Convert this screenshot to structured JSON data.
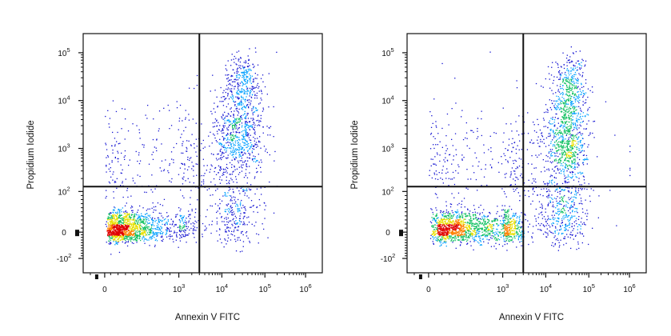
{
  "chart_data": [
    {
      "type": "scatter",
      "title": "",
      "xlabel": "Annexin V FITC",
      "ylabel": "Propidium Iodide",
      "x_scale": "biexponential",
      "y_scale": "biexponential",
      "x_tick_labels": [
        {
          "value": 0,
          "base": "0",
          "exp": ""
        },
        {
          "value": 1000,
          "base": "10",
          "exp": "3"
        },
        {
          "value": 10000,
          "base": "10",
          "exp": "4"
        },
        {
          "value": 100000,
          "base": "10",
          "exp": "5"
        },
        {
          "value": 1000000,
          "base": "10",
          "exp": "6"
        }
      ],
      "y_tick_labels": [
        {
          "value": -100,
          "base": "-10",
          "exp": "2"
        },
        {
          "value": 0,
          "base": "0",
          "exp": ""
        },
        {
          "value": 100,
          "base": "10",
          "exp": "2"
        },
        {
          "value": 1000,
          "base": "10",
          "exp": "3"
        },
        {
          "value": 10000,
          "base": "10",
          "exp": "4"
        },
        {
          "value": 100000,
          "base": "10",
          "exp": "5"
        }
      ],
      "gates": {
        "x": 3000,
        "y": 130
      },
      "density_colormap": [
        "#1414d2",
        "#00a0ff",
        "#10c060",
        "#e8e000",
        "#ff8000",
        "#e00000"
      ],
      "populations": [
        {
          "x_center": 300,
          "y_center": 10,
          "x_spread": 0.38,
          "y_spread": 22,
          "count": 1400
        },
        {
          "x_center": 25000,
          "y_center": 2000,
          "x_spread": 0.28,
          "y_spread": 0.5,
          "count": 650
        },
        {
          "x_center": 30000,
          "y_center": 25000,
          "x_spread": 0.22,
          "y_spread": 0.3,
          "count": 300
        },
        {
          "x_center": 20000,
          "y_center": 40,
          "x_spread": 0.3,
          "y_spread": 45,
          "count": 250
        },
        {
          "x_center": 1200,
          "y_center": 400,
          "x_spread": 0.9,
          "y_spread": 0.65,
          "count": 400
        }
      ]
    },
    {
      "type": "scatter",
      "title": "",
      "xlabel": "Annexin V FITC",
      "ylabel": "Propidium Iodide",
      "x_scale": "biexponential",
      "y_scale": "biexponential",
      "x_tick_labels": [
        {
          "value": 0,
          "base": "0",
          "exp": ""
        },
        {
          "value": 1000,
          "base": "10",
          "exp": "3"
        },
        {
          "value": 10000,
          "base": "10",
          "exp": "4"
        },
        {
          "value": 100000,
          "base": "10",
          "exp": "5"
        },
        {
          "value": 1000000,
          "base": "10",
          "exp": "6"
        }
      ],
      "y_tick_labels": [
        {
          "value": -100,
          "base": "-10",
          "exp": "2"
        },
        {
          "value": 0,
          "base": "0",
          "exp": ""
        },
        {
          "value": 100,
          "base": "10",
          "exp": "2"
        },
        {
          "value": 1000,
          "base": "10",
          "exp": "3"
        },
        {
          "value": 10000,
          "base": "10",
          "exp": "4"
        },
        {
          "value": 100000,
          "base": "10",
          "exp": "5"
        }
      ],
      "gates": {
        "x": 3000,
        "y": 130
      },
      "density_colormap": [
        "#1414d2",
        "#00a0ff",
        "#10c060",
        "#e8e000",
        "#ff8000",
        "#e00000"
      ],
      "populations": [
        {
          "x_center": 500,
          "y_center": 10,
          "x_spread": 0.38,
          "y_spread": 22,
          "count": 1500
        },
        {
          "x_center": 30000,
          "y_center": 1500,
          "x_spread": 0.22,
          "y_spread": 0.55,
          "count": 750
        },
        {
          "x_center": 35000,
          "y_center": 20000,
          "x_spread": 0.2,
          "y_spread": 0.35,
          "count": 350
        },
        {
          "x_center": 25000,
          "y_center": 40,
          "x_spread": 0.3,
          "y_spread": 45,
          "count": 350
        },
        {
          "x_center": 2000,
          "y_center": 400,
          "x_spread": 0.9,
          "y_spread": 0.65,
          "count": 450
        }
      ]
    }
  ]
}
